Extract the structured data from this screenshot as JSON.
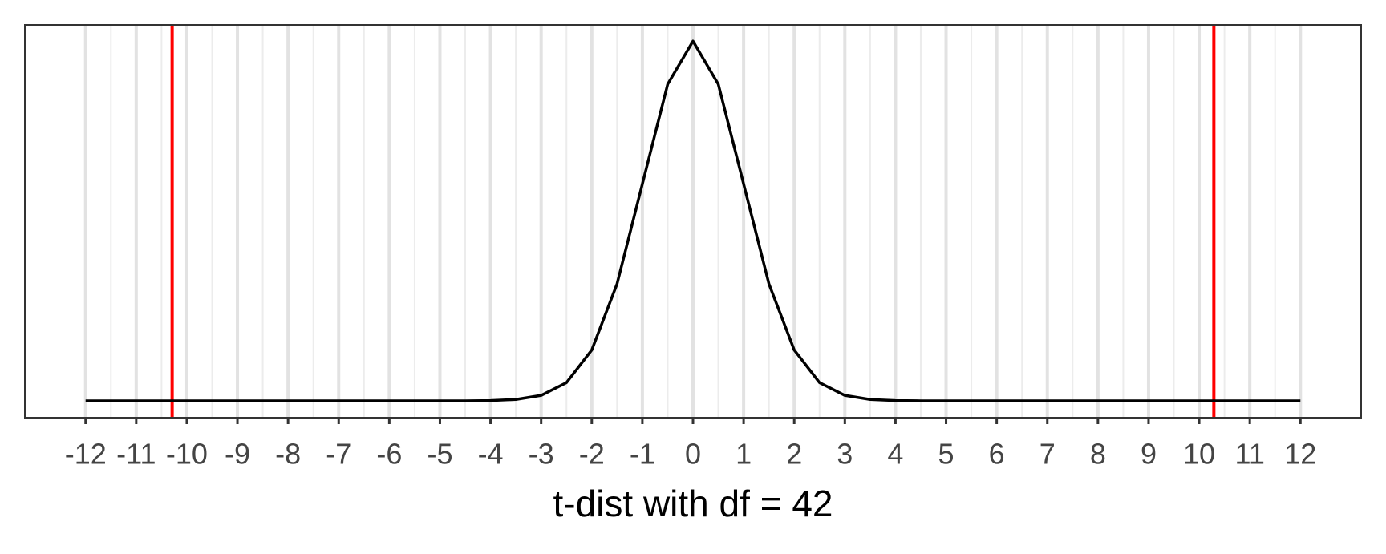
{
  "chart_data": {
    "type": "line",
    "xlabel": "t-dist with df = 42",
    "x": [
      -12,
      -11.5,
      -11,
      -10.5,
      -10,
      -9.5,
      -9,
      -8.5,
      -8,
      -7.5,
      -7,
      -6.5,
      -6,
      -5.5,
      -5,
      -4.5,
      -4,
      -3.5,
      -3,
      -2.5,
      -2,
      -1.5,
      -1,
      -0.5,
      0,
      0.5,
      1,
      1.5,
      2,
      2.5,
      3,
      3.5,
      4,
      4.5,
      5,
      5.5,
      6,
      6.5,
      7,
      7.5,
      8,
      8.5,
      9,
      9.5,
      10,
      10.5,
      11,
      11.5,
      12
    ],
    "series": [
      {
        "color": "#000000",
        "values": [
          0,
          0,
          0,
          0,
          0,
          0,
          0,
          0,
          0,
          0,
          0,
          0,
          0,
          0,
          0,
          0.0001,
          0.0004,
          0.0016,
          0.0061,
          0.0201,
          0.0561,
          0.1291,
          0.2391,
          0.3491,
          0.3966,
          0.3491,
          0.2391,
          0.1291,
          0.0561,
          0.0201,
          0.0061,
          0.0016,
          0.0004,
          0.0001,
          0,
          0,
          0,
          0,
          0,
          0,
          0,
          0,
          0,
          0,
          0,
          0,
          0,
          0,
          0
        ]
      }
    ],
    "vlines": [
      {
        "value": -10.29,
        "color": "#ff0000"
      },
      {
        "value": 10.29,
        "color": "#ff0000"
      }
    ],
    "xlim": [
      -13.2,
      13.2
    ],
    "ylim": [
      -0.0185,
      0.4145
    ],
    "xticks": [
      -12,
      -11,
      -10,
      -9,
      -8,
      -7,
      -6,
      -5,
      -4,
      -3,
      -2,
      -1,
      0,
      1,
      2,
      3,
      4,
      5,
      6,
      7,
      8,
      9,
      10,
      11,
      12
    ],
    "grid": true,
    "minor_grid": true
  }
}
